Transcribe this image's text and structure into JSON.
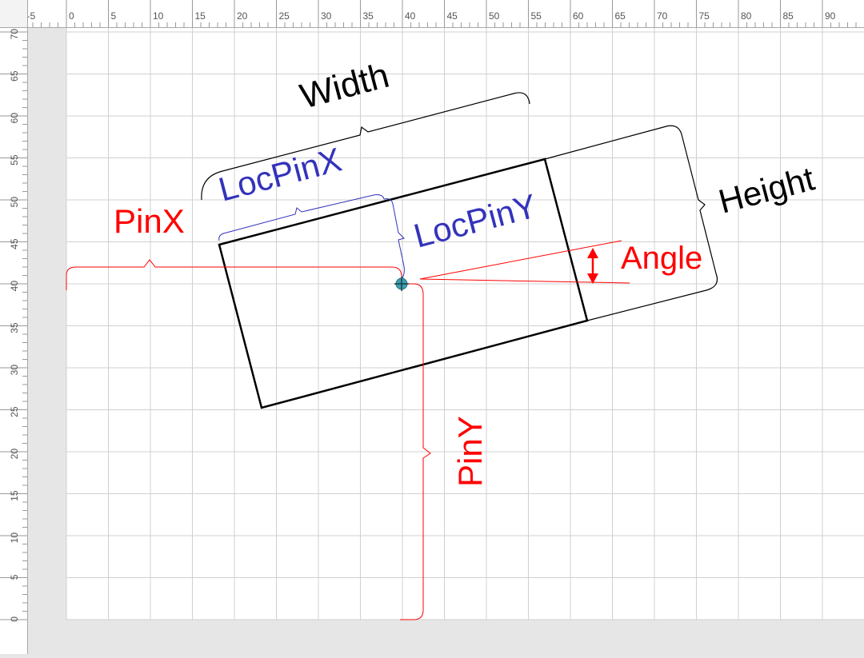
{
  "rulers": {
    "horizontal_labels": [
      "-5",
      "0",
      "5",
      "10",
      "15",
      "20",
      "25",
      "30",
      "35",
      "40",
      "45",
      "50",
      "55",
      "60",
      "65",
      "70",
      "75",
      "80",
      "85",
      "90"
    ],
    "vertical_labels": [
      "70",
      "65",
      "60",
      "55",
      "50",
      "45",
      "40",
      "35",
      "30",
      "25",
      "20",
      "15",
      "10",
      "5",
      "0"
    ]
  },
  "diagram": {
    "labels": {
      "width": "Width",
      "height": "Height",
      "loc_pin_x": "LocPinX",
      "loc_pin_y": "LocPinY",
      "pin_x": "PinX",
      "pin_y": "PinY",
      "angle": "Angle"
    }
  },
  "colors": {
    "page_background": "#ffffff",
    "grid_line": "#d0d0d0",
    "shape_outline": "#000000",
    "pin_annotation": "#ff0000",
    "loc_pin_annotation": "#3333bb",
    "dimension_annotation": "#000000",
    "pin_marker": "#3aa0b0"
  }
}
